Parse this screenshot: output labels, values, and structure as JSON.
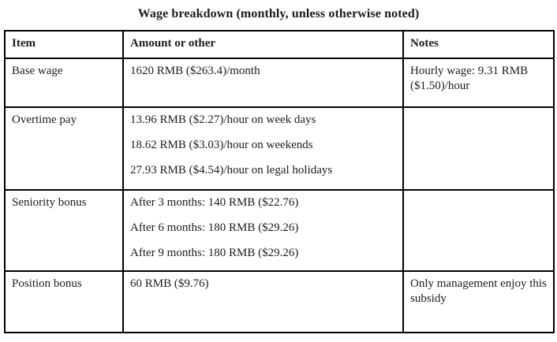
{
  "title": "Wage breakdown (monthly, unless otherwise noted)",
  "table": {
    "headers": [
      "Item",
      "Amount or other",
      "Notes"
    ],
    "rows": [
      {
        "item": "Base wage",
        "amount": [
          "1620 RMB ($263.4)/month"
        ],
        "notes": [
          "Hourly wage: 9.31 RMB ($1.50)/hour"
        ]
      },
      {
        "item": "Overtime pay",
        "amount": [
          "13.96 RMB ($2.27)/hour on week days",
          "18.62 RMB ($3.03)/hour on weekends",
          "27.93 RMB ($4.54)/hour on legal holidays"
        ],
        "notes": []
      },
      {
        "item": "Seniority bonus",
        "amount": [
          "After 3 months: 140 RMB ($22.76)",
          "After 6 months: 180 RMB ($29.26)",
          "After 9 months: 180 RMB ($29.26)"
        ],
        "notes": []
      },
      {
        "item": "Position bonus",
        "amount": [
          "60 RMB ($9.76)"
        ],
        "notes": [
          "Only management enjoy this subsidy"
        ]
      }
    ]
  },
  "colors": {
    "border": "#000000",
    "text": "#1c1c1c",
    "background": "#ffffff"
  }
}
